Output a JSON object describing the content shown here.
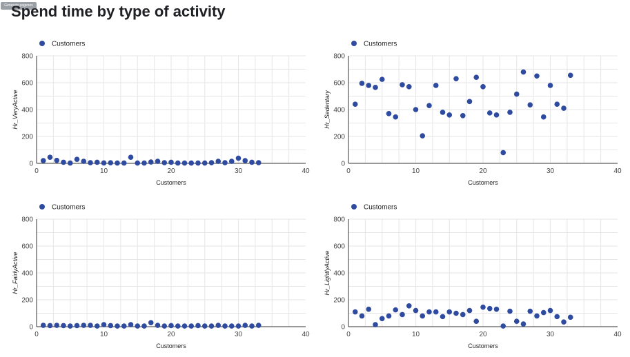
{
  "header": {
    "badge": "Generate pagenes",
    "title": "Spend time by type of activity"
  },
  "colors": {
    "point": "#2f4b9f",
    "grid": "#e6e6e6",
    "axis": "#333333"
  },
  "chart_data": [
    {
      "type": "scatter",
      "legend": "Customers",
      "legend_position": "top-left",
      "xlabel": "Customers",
      "ylabel": "Hr_VeryActive",
      "xlim": [
        0,
        40
      ],
      "ylim": [
        0,
        800
      ],
      "xticks": [
        0,
        10,
        20,
        30,
        40
      ],
      "yticks": [
        0,
        200,
        400,
        600,
        800
      ],
      "grid": true,
      "series": [
        {
          "name": "Customers",
          "x": [
            1,
            2,
            3,
            4,
            5,
            6,
            7,
            8,
            9,
            10,
            11,
            12,
            13,
            14,
            15,
            16,
            17,
            18,
            19,
            20,
            21,
            22,
            23,
            24,
            25,
            26,
            27,
            28,
            29,
            30,
            31,
            32,
            33
          ],
          "y": [
            20,
            45,
            22,
            8,
            2,
            30,
            15,
            5,
            8,
            3,
            4,
            2,
            2,
            45,
            2,
            2,
            10,
            15,
            5,
            8,
            2,
            2,
            2,
            2,
            2,
            5,
            15,
            5,
            15,
            38,
            20,
            8,
            5
          ]
        }
      ]
    },
    {
      "type": "scatter",
      "legend": "Customers",
      "legend_position": "top-left",
      "xlabel": "Customers",
      "ylabel": "Hr_Sedentary",
      "xlim": [
        0,
        40
      ],
      "ylim": [
        0,
        800
      ],
      "xticks": [
        0,
        10,
        20,
        30,
        40
      ],
      "yticks": [
        0,
        200,
        400,
        600,
        800
      ],
      "grid": true,
      "series": [
        {
          "name": "Customers",
          "x": [
            1,
            2,
            3,
            4,
            5,
            6,
            7,
            8,
            9,
            10,
            11,
            12,
            13,
            14,
            15,
            16,
            17,
            18,
            19,
            20,
            21,
            22,
            23,
            24,
            25,
            26,
            27,
            28,
            29,
            30,
            31,
            32,
            33
          ],
          "y": [
            440,
            595,
            580,
            565,
            625,
            370,
            345,
            585,
            570,
            400,
            205,
            430,
            580,
            380,
            360,
            630,
            355,
            460,
            640,
            570,
            375,
            360,
            80,
            380,
            515,
            680,
            435,
            650,
            345,
            580,
            440,
            410,
            655
          ]
        }
      ]
    },
    {
      "type": "scatter",
      "legend": "Customers",
      "legend_position": "top-left",
      "xlabel": "Customers",
      "ylabel": "Hr_FairlyActive",
      "xlim": [
        0,
        40
      ],
      "ylim": [
        0,
        800
      ],
      "xticks": [
        0,
        10,
        20,
        30,
        40
      ],
      "yticks": [
        0,
        200,
        400,
        600,
        800
      ],
      "grid": true,
      "series": [
        {
          "name": "Customers",
          "x": [
            1,
            2,
            3,
            4,
            5,
            6,
            7,
            8,
            9,
            10,
            11,
            12,
            13,
            14,
            15,
            16,
            17,
            18,
            19,
            20,
            21,
            22,
            23,
            24,
            25,
            26,
            27,
            28,
            29,
            30,
            31,
            32,
            33
          ],
          "y": [
            10,
            8,
            10,
            8,
            5,
            8,
            10,
            10,
            5,
            15,
            8,
            5,
            5,
            15,
            5,
            5,
            30,
            10,
            5,
            8,
            5,
            5,
            5,
            8,
            5,
            5,
            10,
            5,
            5,
            5,
            10,
            5,
            10
          ]
        }
      ]
    },
    {
      "type": "scatter",
      "legend": "Customers",
      "legend_position": "top-left",
      "xlabel": "Customers",
      "ylabel": "Hr_LightlyActive",
      "xlim": [
        0,
        40
      ],
      "ylim": [
        0,
        800
      ],
      "xticks": [
        0,
        10,
        20,
        30,
        40
      ],
      "yticks": [
        0,
        200,
        400,
        600,
        800
      ],
      "grid": true,
      "series": [
        {
          "name": "Customers",
          "x": [
            1,
            2,
            3,
            4,
            5,
            6,
            7,
            8,
            9,
            10,
            11,
            12,
            13,
            14,
            15,
            16,
            17,
            18,
            19,
            20,
            21,
            22,
            23,
            24,
            25,
            26,
            27,
            28,
            29,
            30,
            31,
            32,
            33
          ],
          "y": [
            110,
            80,
            130,
            15,
            60,
            80,
            125,
            90,
            155,
            120,
            80,
            110,
            110,
            75,
            110,
            100,
            90,
            120,
            40,
            145,
            135,
            130,
            5,
            115,
            40,
            20,
            115,
            80,
            105,
            120,
            75,
            35,
            70
          ]
        }
      ]
    }
  ]
}
